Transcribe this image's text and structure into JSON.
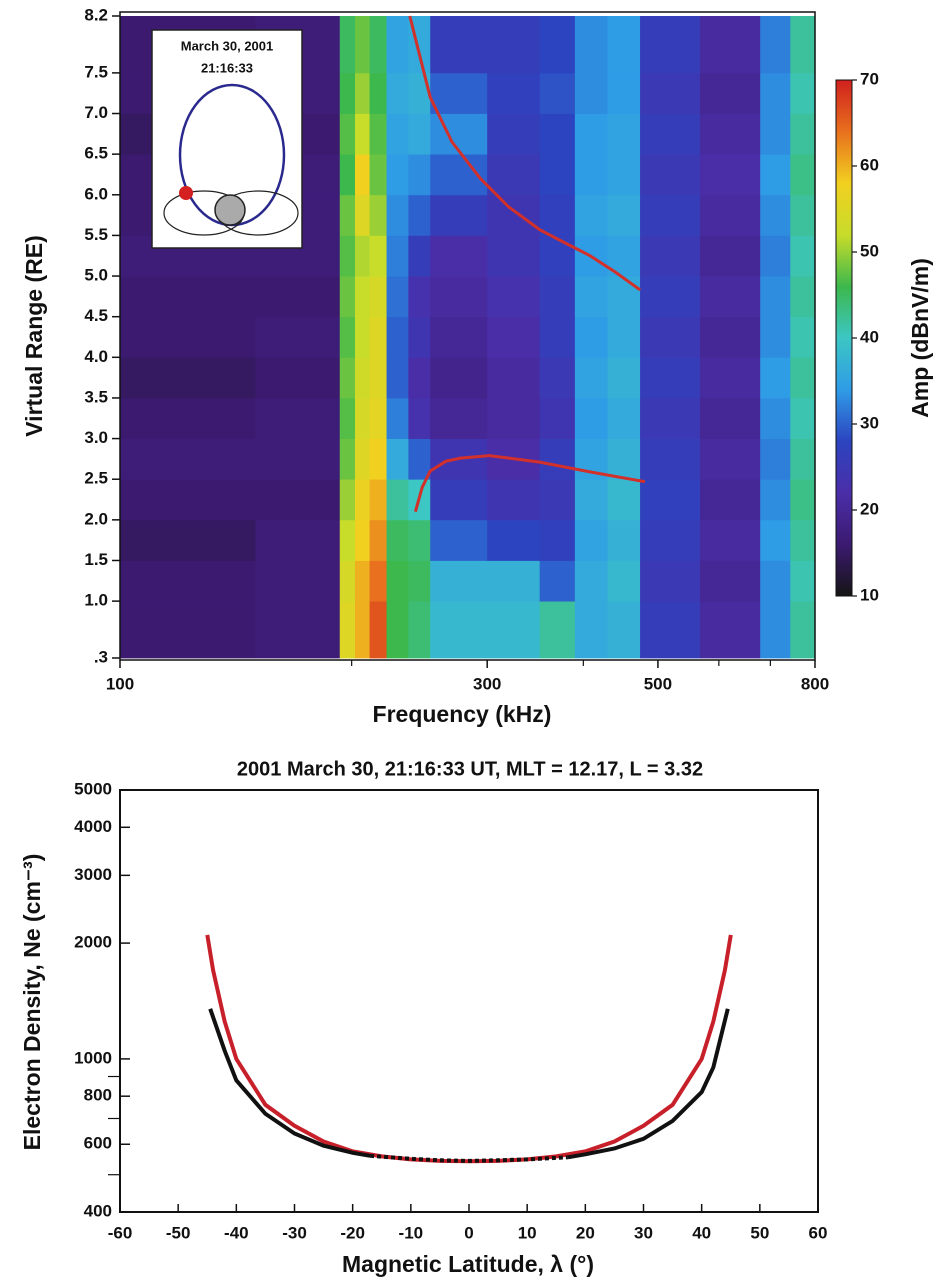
{
  "chart_data": [
    {
      "type": "heatmap",
      "xlabel": "Frequency (kHz)",
      "ylabel": "Virtual Range (RE)",
      "xlog": true,
      "xlim": [
        100,
        800
      ],
      "xticks": [
        100,
        300,
        500,
        800
      ],
      "xminorticks": [
        200,
        400,
        600,
        700
      ],
      "ylim": [
        0.3,
        8.2
      ],
      "yticks": [
        {
          "value": 0.3,
          "label": ".3"
        },
        {
          "value": 1,
          "label": "1.0"
        },
        1.5,
        {
          "value": 2,
          "label": "2.0"
        },
        2.5,
        {
          "value": 3,
          "label": "3.0"
        },
        3.5,
        {
          "value": 4,
          "label": "4.0"
        },
        4.5,
        {
          "value": 5,
          "label": "5.0"
        },
        5.5,
        {
          "value": 6,
          "label": "6.0"
        },
        6.5,
        {
          "value": 7,
          "label": "7.0"
        },
        7.5,
        8.2
      ],
      "xbins": [
        100,
        150,
        193,
        202,
        211,
        222,
        237,
        253,
        300,
        351,
        390,
        430,
        474,
        567,
        679,
        743,
        800
      ],
      "ybins": [
        0.3,
        1,
        1.5,
        2,
        2.5,
        3,
        3.5,
        4,
        4.5,
        5,
        5.5,
        6,
        6.5,
        7,
        7.5,
        8.2
      ],
      "z": [
        [
          16,
          17,
          55,
          60,
          66,
          46,
          44,
          38,
          38,
          42,
          36,
          37,
          26,
          21,
          33,
          42
        ],
        [
          16,
          17,
          54,
          60,
          64,
          46,
          45,
          37,
          37,
          30,
          36,
          38,
          25,
          20,
          33,
          41
        ],
        [
          15,
          17,
          52,
          58,
          62,
          45,
          44,
          30,
          28,
          27,
          35,
          37,
          26,
          21,
          34,
          42
        ],
        [
          16,
          16,
          50,
          57,
          60,
          42,
          40,
          26,
          24,
          25,
          36,
          38,
          27,
          20,
          33,
          43
        ],
        [
          17,
          17,
          48,
          55,
          58,
          36,
          30,
          24,
          22,
          26,
          35,
          37,
          26,
          21,
          32,
          42
        ],
        [
          16,
          17,
          47,
          54,
          56,
          32,
          23,
          20,
          21,
          24,
          34,
          36,
          25,
          20,
          33,
          41
        ],
        [
          15,
          16,
          48,
          53,
          55,
          30,
          22,
          19,
          21,
          25,
          35,
          37,
          26,
          21,
          34,
          42
        ],
        [
          16,
          17,
          47,
          52,
          55,
          30,
          24,
          20,
          22,
          26,
          34,
          36,
          25,
          20,
          33,
          41
        ],
        [
          16,
          16,
          48,
          52,
          54,
          31,
          23,
          21,
          23,
          26,
          35,
          36,
          26,
          21,
          33,
          42
        ],
        [
          17,
          17,
          47,
          51,
          52,
          32,
          26,
          22,
          24,
          27,
          34,
          35,
          25,
          20,
          32,
          41
        ],
        [
          16,
          17,
          48,
          55,
          50,
          33,
          30,
          26,
          24,
          27,
          35,
          36,
          26,
          21,
          33,
          42
        ],
        [
          16,
          17,
          46,
          58,
          48,
          34,
          33,
          30,
          25,
          28,
          34,
          35,
          25,
          22,
          34,
          43
        ],
        [
          15,
          16,
          47,
          52,
          47,
          35,
          36,
          33,
          26,
          28,
          34,
          35,
          26,
          21,
          33,
          42
        ],
        [
          16,
          17,
          46,
          50,
          46,
          36,
          37,
          30,
          27,
          29,
          33,
          34,
          25,
          20,
          33,
          41
        ],
        [
          16,
          17,
          45,
          48,
          45,
          35,
          36,
          26,
          26,
          28,
          33,
          34,
          26,
          21,
          32,
          42
        ]
      ],
      "zlim": [
        10,
        70
      ],
      "zticks": [
        10,
        20,
        30,
        40,
        50,
        60,
        70
      ],
      "zlabel": "Amp (dBnV/m)",
      "colormap": [
        "#151515",
        "#3b1a70",
        "#4a2ea8",
        "#2c44c0",
        "#2f9ce6",
        "#3cc6c4",
        "#3db84c",
        "#c8dc2a",
        "#f2d020",
        "#e8701e",
        "#d0201e"
      ],
      "series": [
        {
          "color": "#d2302a",
          "x": [
            238,
            253,
            270,
            294,
            320,
            351,
            380,
            408,
            440,
            474
          ],
          "values": [
            8.2,
            7.2,
            6.65,
            6.2,
            5.85,
            5.57,
            5.4,
            5.25,
            5.05,
            4.83
          ]
        },
        {
          "color": "#d2302a",
          "x": [
            242,
            247,
            253,
            265,
            277,
            302,
            351,
            408,
            481
          ],
          "values": [
            2.1,
            2.4,
            2.6,
            2.72,
            2.76,
            2.79,
            2.71,
            2.59,
            2.47
          ]
        }
      ],
      "annotations": [
        "March 30, 2001",
        "21:16:33"
      ]
    },
    {
      "type": "line",
      "title": "2001 March 30, 21:16:33 UT, MLT = 12.17, L = 3.32",
      "xlabel": "Magnetic Latitude, λ (°)",
      "ylabel": "Electron Density, Ne (cm⁻³)",
      "xlim": [
        -60,
        60
      ],
      "xticks": [
        -60,
        -50,
        -40,
        -30,
        -20,
        -10,
        0,
        10,
        20,
        30,
        40,
        50,
        60
      ],
      "ylog": true,
      "ylim": [
        400,
        5000
      ],
      "yticks": [
        400,
        600,
        800,
        1000,
        2000,
        3000,
        4000,
        5000
      ],
      "yminorticks": [
        500,
        700,
        900
      ],
      "series": [
        {
          "color": "#c8202a",
          "x": [
            -45,
            -44,
            -42,
            -40,
            -35,
            -30,
            -25,
            -20,
            -15,
            -10,
            -5,
            0,
            5,
            10,
            15,
            20,
            25,
            30,
            35,
            40,
            42,
            44,
            45
          ],
          "values": [
            2100,
            1700,
            1250,
            1000,
            760,
            670,
            610,
            575,
            558,
            548,
            543,
            542,
            543,
            548,
            558,
            575,
            610,
            670,
            760,
            1000,
            1250,
            1700,
            2100
          ]
        },
        {
          "color": "#111111",
          "x": [
            -44.5,
            -42,
            -40,
            -35,
            -30,
            -25,
            -20,
            -17,
            0,
            17,
            20,
            25,
            30,
            35,
            40,
            42,
            44.5
          ],
          "values": [
            1350,
            1050,
            880,
            720,
            640,
            595,
            570,
            560,
            null,
            555,
            565,
            585,
            620,
            690,
            820,
            950,
            1350
          ]
        },
        {
          "color": "#111111",
          "dashed": true,
          "x": [
            -17,
            -10,
            -5,
            0,
            5,
            10,
            17
          ],
          "values": [
            560,
            550,
            545,
            543,
            545,
            548,
            555
          ]
        }
      ]
    }
  ]
}
